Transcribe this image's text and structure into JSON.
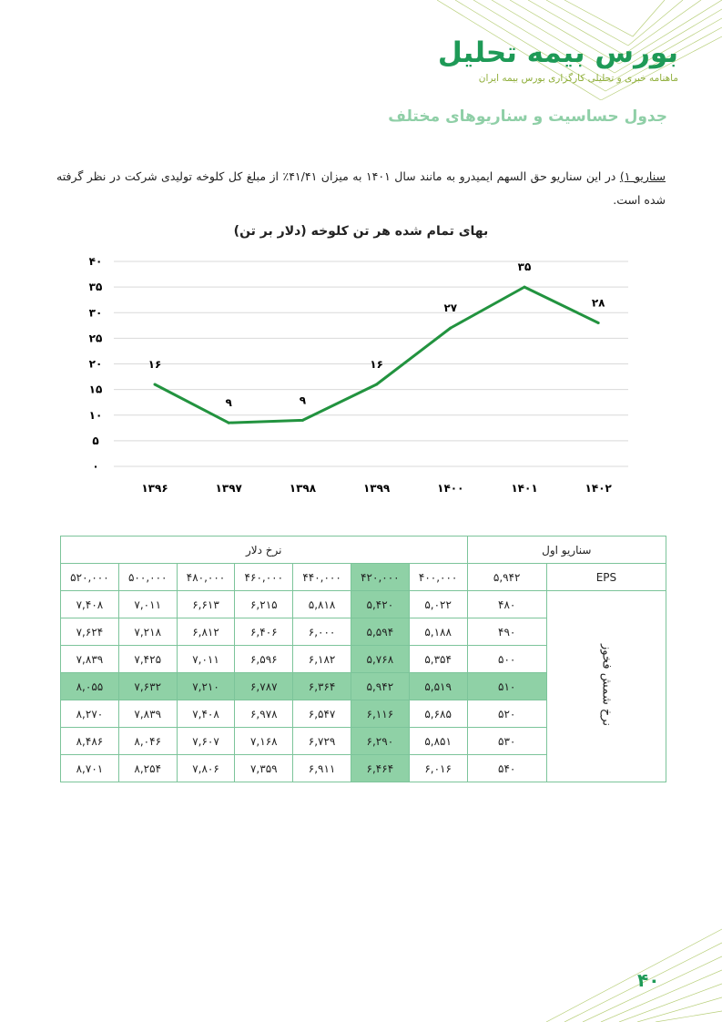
{
  "header": {
    "brand_title": "بورس بیمه تحلیل",
    "brand_subtitle": "ماهنامه خبری و تحلیلی کارگزاری بورس بیمه ایران"
  },
  "section_title": "جدول حساسیت و سناریوهای مختلف",
  "paragraph": {
    "lead": "سناریو ۱)",
    "body": " در این سناریو حق السهم ایمیدرو به مانند سال ۱۴۰۱ به میزان ۴۱/۴۱٪ از مبلغ کل کلوخه تولیدی شرکت در نظر گرفته شده است."
  },
  "chart_data": {
    "type": "line",
    "title": "بهای تمام شده هر تن کلوخه (دلار بر تن)",
    "categories": [
      "۱۳۹۶",
      "۱۳۹۷",
      "۱۳۹۸",
      "۱۳۹۹",
      "۱۴۰۰",
      "۱۴۰۱",
      "۱۴۰۲"
    ],
    "values": [
      16,
      8.5,
      9,
      16,
      27,
      35,
      28
    ],
    "data_labels": [
      "۱۶",
      "۹",
      "۹",
      "۱۶",
      "۲۷",
      "۳۵",
      "۲۸"
    ],
    "yticks": [
      0,
      5,
      10,
      15,
      20,
      25,
      30,
      35,
      40
    ],
    "ytick_labels": [
      "۰",
      "۵",
      "۱۰",
      "۱۵",
      "۲۰",
      "۲۵",
      "۳۰",
      "۳۵",
      "۴۰"
    ],
    "ylim": [
      0,
      40
    ],
    "grid": true,
    "color": "#22933f"
  },
  "table": {
    "scenario_label": "سناریو اول",
    "dollar_label": "نرخ دلار",
    "eps_label": "EPS",
    "eps_value": "۵,۹۴۲",
    "row_group_label": "نرخ شمش فخوز",
    "dollar_rates": [
      "۴۰۰,۰۰۰",
      "۴۲۰,۰۰۰",
      "۴۴۰,۰۰۰",
      "۴۶۰,۰۰۰",
      "۴۸۰,۰۰۰",
      "۵۰۰,۰۰۰",
      "۵۲۰,۰۰۰"
    ],
    "rows": [
      {
        "rate": "۴۸۰",
        "values": [
          "۵,۰۲۲",
          "۵,۴۲۰",
          "۵,۸۱۸",
          "۶,۲۱۵",
          "۶,۶۱۳",
          "۷,۰۱۱",
          "۷,۴۰۸"
        ]
      },
      {
        "rate": "۴۹۰",
        "values": [
          "۵,۱۸۸",
          "۵,۵۹۴",
          "۶,۰۰۰",
          "۶,۴۰۶",
          "۶,۸۱۲",
          "۷,۲۱۸",
          "۷,۶۲۴"
        ]
      },
      {
        "rate": "۵۰۰",
        "values": [
          "۵,۳۵۴",
          "۵,۷۶۸",
          "۶,۱۸۲",
          "۶,۵۹۶",
          "۷,۰۱۱",
          "۷,۴۲۵",
          "۷,۸۳۹"
        ]
      },
      {
        "rate": "۵۱۰",
        "values": [
          "۵,۵۱۹",
          "۵,۹۴۲",
          "۶,۳۶۴",
          "۶,۷۸۷",
          "۷,۲۱۰",
          "۷,۶۳۲",
          "۸,۰۵۵"
        ]
      },
      {
        "rate": "۵۲۰",
        "values": [
          "۵,۶۸۵",
          "۶,۱۱۶",
          "۶,۵۴۷",
          "۶,۹۷۸",
          "۷,۴۰۸",
          "۷,۸۳۹",
          "۸,۲۷۰"
        ]
      },
      {
        "rate": "۵۳۰",
        "values": [
          "۵,۸۵۱",
          "۶,۲۹۰",
          "۶,۷۲۹",
          "۷,۱۶۸",
          "۷,۶۰۷",
          "۸,۰۴۶",
          "۸,۴۸۶"
        ]
      },
      {
        "rate": "۵۴۰",
        "values": [
          "۶,۰۱۶",
          "۶,۴۶۴",
          "۶,۹۱۱",
          "۷,۳۵۹",
          "۷,۸۰۶",
          "۸,۲۵۴",
          "۸,۷۰۱"
        ]
      }
    ],
    "highlight_col": 1,
    "highlight_row": 3,
    "highlight_color": "#8fd1a6"
  },
  "page_number": "۴۰"
}
